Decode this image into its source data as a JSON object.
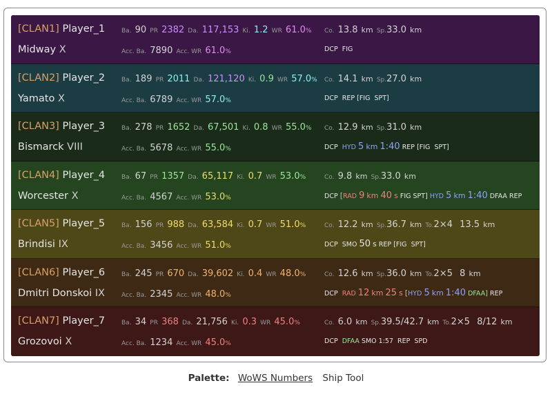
{
  "palette": {
    "label": "Palette:",
    "link1": "WoWS Numbers",
    "link2": "Ship Tool"
  },
  "labels": {
    "battles": "Ba.",
    "pr": "PR",
    "damage": "Da.",
    "kills": "Ki.",
    "winrate": "WR",
    "acc_battles": "Acc. Ba.",
    "acc_wr": "Acc. WR",
    "concealment": "Co.",
    "speed": "Sp.",
    "torpedoes": "To.",
    "km": "km",
    "pct": "%",
    "s": "s"
  },
  "colors": {
    "row_bg": [
      "#3a1744",
      "#1c3c44",
      "#1a2c19",
      "#24451f",
      "#4e4718",
      "#3e2915",
      "#3e1717"
    ],
    "purple": "#cf8bff",
    "pink": "#e08df0",
    "cyan": "#8cf0ef",
    "green": "#9be69b",
    "yellow": "#f0dc6c",
    "orange": "#f0b46c",
    "red": "#f08080",
    "blue": "#8ea0ff",
    "clan": "#d9a066"
  },
  "players": [
    {
      "clan": "[CLAN1]",
      "name": "Player_1",
      "ship": "Midway",
      "tier": "X",
      "battles": "90",
      "pr": "2382",
      "damage": "117,153",
      "kills": "1.2",
      "wr": "61.0",
      "acc_battles": "7890",
      "acc_wr": "61.0",
      "co": "13.8",
      "sp": "33.0",
      "cons": [
        "DCP",
        "FIG"
      ]
    },
    {
      "clan": "[CLAN2]",
      "name": "Player_2",
      "ship": "Yamato",
      "tier": "X",
      "battles": "189",
      "pr": "2011",
      "damage": "121,120",
      "kills": "0.9",
      "wr": "57.0",
      "acc_battles": "6789",
      "acc_wr": "57.0",
      "co": "14.1",
      "sp": "27.0",
      "cons": [
        "DCP",
        "REP",
        "[FIG",
        "SPT]"
      ]
    },
    {
      "clan": "[CLAN3]",
      "name": "Player_3",
      "ship": "Bismarck",
      "tier": "VIII",
      "battles": "278",
      "pr": "1652",
      "damage": "67,501",
      "kills": "0.8",
      "wr": "55.0",
      "acc_battles": "5678",
      "acc_wr": "55.0",
      "co": "12.9",
      "sp": "31.0",
      "hyd": {
        "label": "HYD",
        "range": "5",
        "time": "1:40"
      },
      "cons_tail": [
        "REP",
        "[FIG",
        "SPT]"
      ]
    },
    {
      "clan": "[CLAN4]",
      "name": "Player_4",
      "ship": "Worcester",
      "tier": "X",
      "battles": "67",
      "pr": "1357",
      "damage": "65,117",
      "kills": "0.7",
      "wr": "53.0",
      "acc_battles": "4567",
      "acc_wr": "53.0",
      "co": "9.8",
      "sp": "33.0",
      "rad": {
        "label": "RAD",
        "range": "9",
        "time": "40"
      },
      "hyd": {
        "label": "HYD",
        "range": "5",
        "time": "1:40"
      },
      "cons_tail": [
        "DFAA",
        "REP"
      ]
    },
    {
      "clan": "[CLAN5]",
      "name": "Player_5",
      "ship": "Brindisi",
      "tier": "IX",
      "battles": "156",
      "pr": "988",
      "damage": "63,584",
      "kills": "0.7",
      "wr": "51.0",
      "acc_battles": "3456",
      "acc_wr": "51.0",
      "co": "12.2",
      "sp": "36.7",
      "torps": "2×4",
      "torp_range": "13.5",
      "smo": {
        "label": "SMO",
        "time": "50"
      },
      "cons_tail": [
        "REP",
        "[FIG",
        "SPT]"
      ]
    },
    {
      "clan": "[CLAN6]",
      "name": "Player_6",
      "ship": "Dmitri Donskoi",
      "tier": "IX",
      "battles": "245",
      "pr": "670",
      "damage": "39,602",
      "kills": "0.4",
      "wr": "48.0",
      "acc_battles": "2345",
      "acc_wr": "48.0",
      "co": "12.6",
      "sp": "36.0",
      "torps": "2×5",
      "torp_range": "8",
      "rad": {
        "label": "RAD",
        "range": "12",
        "time": "25"
      },
      "hyd": {
        "label": "HYD",
        "range": "5",
        "time": "1:40"
      },
      "cons_tail": [
        "DFAA]",
        "REP"
      ]
    },
    {
      "clan": "[CLAN7]",
      "name": "Player_7",
      "ship": "Grozovoi",
      "tier": "X",
      "battles": "34",
      "pr": "368",
      "damage": "21,756",
      "kills": "0.3",
      "wr": "45.0",
      "acc_battles": "1234",
      "acc_wr": "45.0",
      "co": "6.0",
      "sp": "39.5/42.7",
      "torps": "2×5",
      "torp_range": "8/12",
      "cons": [
        "DCP",
        "DFAA",
        "SMO 1:57",
        "REP",
        "SPD"
      ]
    }
  ]
}
